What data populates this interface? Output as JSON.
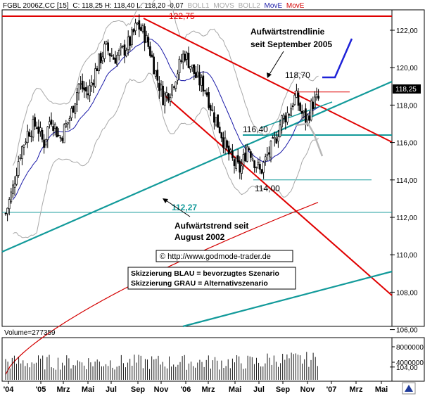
{
  "header": {
    "symbol": "FGBL 2006Z,CC [15]",
    "ohlc": "C: 118,25 H: 118,40 L: 118,20 -0,07",
    "ind1": "BOLL1",
    "ind2": "MOVS",
    "ind3": "BOLL2",
    "ind4": "MovE",
    "ind5": "MovE"
  },
  "colors": {
    "candle": "#000000",
    "ma_blue": "#1a1aa8",
    "ma_red": "#d40000",
    "boll": "#a8a8a8",
    "trend_red": "#e00000",
    "trend_teal": "#129a9a",
    "blue_scenario": "#1e22d8",
    "grey_scenario": "#b8b8b8"
  },
  "chart_data": {
    "type": "candlestick",
    "ylim": [
      103.5,
      123.2
    ],
    "y_ticks": [
      "104,00",
      "106,00",
      "108,00",
      "110,00",
      "112,00",
      "114,00",
      "116,00",
      "118,00",
      "120,00",
      "122,00"
    ],
    "x_ticks": [
      "'04",
      "'05",
      "Mrz",
      "Mai",
      "Jul",
      "Sep",
      "Nov",
      "'06",
      "Mrz",
      "Mai",
      "Jul",
      "Sep",
      "Nov",
      "'07",
      "Mrz",
      "Mai"
    ],
    "last_price": "118,25",
    "levels": [
      {
        "label": "122,75",
        "value": 122.75
      },
      {
        "label": "112,27",
        "value": 112.27
      },
      {
        "label": "116,40",
        "value": 116.4
      },
      {
        "label": "114,00",
        "value": 114.0
      },
      {
        "label": "118,70",
        "value": 118.7
      }
    ],
    "volume": {
      "label": "Volume=277359",
      "ticks": [
        "8000000",
        "4000000"
      ]
    },
    "annotations": [
      "Aufwärtstrendlinie seit September 2005",
      "Aufwärtstrend seit August 2002",
      "© http://www.godmode-trader.de",
      "Skizzierung BLAU = bevorzugtes Szenario",
      "Skizzierung GRAU = Alternativszenario"
    ]
  },
  "annotations": {
    "trend_sep_line1": "Aufwärtstrendlinie",
    "trend_sep_line2": "seit September 2005",
    "trend_aug_line1": "Aufwärtstrend seit",
    "trend_aug_line2": "August 2002",
    "copyright": "© http://www.godmode-trader.de",
    "legend_blue": "Skizzierung BLAU = bevorzugtes Szenario",
    "legend_grey": "Skizzierung GRAU = Alternativszenario"
  }
}
